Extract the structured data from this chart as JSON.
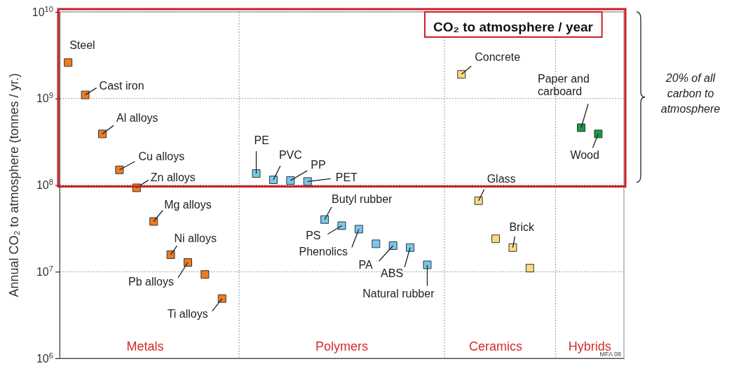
{
  "chart_data": {
    "type": "scatter",
    "ylabel": "Annual CO₂ to atmosphere (tonnes / yr.)",
    "log": "y",
    "ylim": [
      1000000,
      10000000000
    ],
    "yticks": [
      {
        "value": 1000000,
        "label": "10$^{6}$"
      },
      {
        "value": 10000000,
        "label": "10$^{7}$"
      },
      {
        "value": 100000000,
        "label": "10$^{8}$"
      },
      {
        "value": 1000000000,
        "label": "10$^{9}$"
      },
      {
        "value": 10000000000,
        "label": "10$^{10}$"
      }
    ],
    "categories": [
      null,
      null,
      null,
      null,
      null,
      null,
      null,
      null,
      null,
      null,
      null,
      null,
      null,
      null,
      null,
      null,
      null,
      null,
      null,
      null,
      null,
      null,
      null,
      null,
      null,
      null,
      null,
      null,
      null,
      null,
      null,
      null,
      null
    ],
    "grid": "y",
    "marker": "square",
    "series": [
      {
        "color": "#ee7d22",
        "values": [
          2600000000,
          1100000000,
          390000000,
          150000000,
          93000000,
          38000000,
          15700000,
          12800000,
          9300000,
          4900000,
          null,
          null,
          null,
          null,
          null,
          null,
          null,
          null,
          null,
          null,
          null,
          null,
          null,
          null,
          null,
          null,
          null,
          null,
          null,
          null,
          null,
          null,
          null
        ]
      },
      {
        "color": "#78c8ec",
        "values": [
          null,
          null,
          null,
          null,
          null,
          null,
          null,
          null,
          null,
          null,
          null,
          136000000,
          115000000,
          113000000,
          110000000,
          40000000,
          34000000,
          31000000,
          21000000,
          20000000,
          19000000,
          12000000,
          null,
          null,
          null,
          null,
          null,
          null,
          null,
          null,
          null,
          null,
          null
        ]
      },
      {
        "color": "#f9da7e",
        "values": [
          null,
          null,
          null,
          null,
          null,
          null,
          null,
          null,
          null,
          null,
          null,
          null,
          null,
          null,
          null,
          null,
          null,
          null,
          null,
          null,
          null,
          null,
          null,
          1900000000,
          66000000,
          24000000,
          19000000,
          11000000,
          null,
          null,
          null,
          null,
          null
        ]
      },
      {
        "color": "#1a9a4a",
        "values": [
          null,
          null,
          null,
          null,
          null,
          null,
          null,
          null,
          null,
          null,
          null,
          null,
          null,
          null,
          null,
          null,
          null,
          null,
          null,
          null,
          null,
          null,
          null,
          null,
          null,
          null,
          null,
          null,
          null,
          null,
          460000000,
          390000000,
          null
        ]
      }
    ],
    "annotations": [
      "Steel",
      "Cast iron",
      "Al alloys",
      "Cu alloys",
      "Zn alloys",
      "Mg alloys",
      "Ni alloys",
      "Pb alloys",
      "Ti alloys",
      "PE",
      "PVC",
      "PP",
      "PET",
      "Butyl rubber",
      "PS",
      "Phenolics",
      "PA",
      "ABS",
      "Natural rubber",
      "Concrete",
      "Glass",
      "Brick",
      "Paper and carboard",
      "Wood",
      "Metals",
      "Polymers",
      "Ceramics",
      "Hybrids",
      "CO₂ to atmosphere / year",
      "20% of all carbon to atmosphere",
      "MFA 08"
    ]
  }
}
